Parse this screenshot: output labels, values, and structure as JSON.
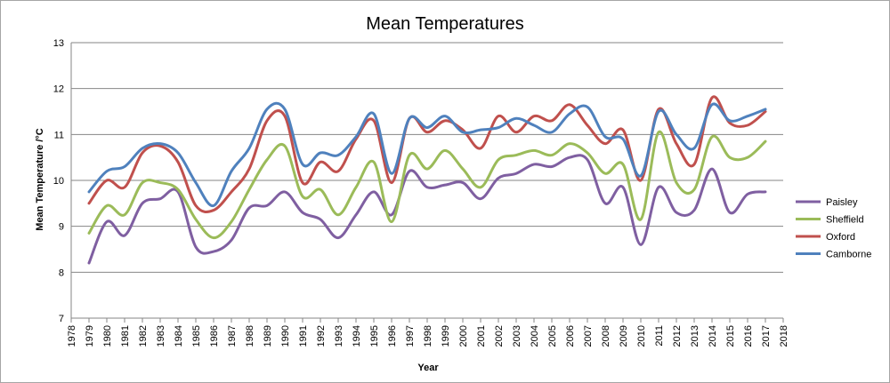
{
  "chart_data": {
    "type": "line",
    "title": "Mean Temperatures",
    "xlabel": "Year",
    "ylabel": "Mean Temperature /°C",
    "xlim": [
      1978,
      2018
    ],
    "ylim": [
      7,
      13
    ],
    "x_ticks": [
      1978,
      1979,
      1980,
      1981,
      1982,
      1983,
      1984,
      1985,
      1986,
      1987,
      1988,
      1989,
      1990,
      1991,
      1992,
      1993,
      1994,
      1995,
      1996,
      1997,
      1998,
      1999,
      2000,
      2001,
      2002,
      2003,
      2004,
      2005,
      2006,
      2007,
      2008,
      2009,
      2010,
      2011,
      2012,
      2013,
      2014,
      2015,
      2016,
      2017,
      2018
    ],
    "y_ticks": [
      7,
      8,
      9,
      10,
      11,
      12,
      13
    ],
    "grid": "horizontal",
    "legend_position": "right",
    "x": [
      1979,
      1980,
      1981,
      1982,
      1983,
      1984,
      1985,
      1986,
      1987,
      1988,
      1989,
      1990,
      1991,
      1992,
      1993,
      1994,
      1995,
      1996,
      1997,
      1998,
      1999,
      2000,
      2001,
      2002,
      2003,
      2004,
      2005,
      2006,
      2007,
      2008,
      2009,
      2010,
      2011,
      2012,
      2013,
      2014,
      2015,
      2016,
      2017
    ],
    "series": [
      {
        "name": "Paisley",
        "color": "#7f5fa1",
        "values": [
          8.2,
          9.1,
          8.8,
          9.5,
          9.6,
          9.75,
          8.55,
          8.45,
          8.7,
          9.4,
          9.45,
          9.75,
          9.3,
          9.15,
          8.75,
          9.25,
          9.75,
          9.25,
          10.2,
          9.85,
          9.9,
          9.95,
          9.6,
          10.05,
          10.15,
          10.35,
          10.3,
          10.5,
          10.45,
          9.5,
          9.85,
          8.6,
          9.85,
          9.3,
          9.35,
          10.25,
          9.3,
          9.7,
          9.75
        ]
      },
      {
        "name": "Sheffield",
        "color": "#9bbb59",
        "values": [
          8.85,
          9.45,
          9.25,
          9.95,
          9.95,
          9.8,
          9.15,
          8.75,
          9.1,
          9.8,
          10.45,
          10.75,
          9.65,
          9.8,
          9.25,
          9.85,
          10.4,
          9.1,
          10.55,
          10.25,
          10.65,
          10.25,
          9.85,
          10.45,
          10.55,
          10.65,
          10.55,
          10.8,
          10.6,
          10.15,
          10.35,
          9.15,
          11.05,
          9.95,
          9.8,
          10.95,
          10.5,
          10.5,
          10.85
        ]
      },
      {
        "name": "Oxford",
        "color": "#c0504d",
        "values": [
          9.5,
          10.0,
          9.85,
          10.6,
          10.75,
          10.4,
          9.45,
          9.35,
          9.75,
          10.25,
          11.3,
          11.4,
          9.95,
          10.4,
          10.2,
          10.9,
          11.3,
          9.95,
          11.35,
          11.05,
          11.3,
          11.1,
          10.7,
          11.4,
          11.05,
          11.4,
          11.3,
          11.65,
          11.2,
          10.8,
          11.1,
          10.0,
          11.55,
          10.8,
          10.35,
          11.8,
          11.25,
          11.2,
          11.5
        ]
      },
      {
        "name": "Camborne",
        "color": "#4f81bd",
        "values": [
          9.75,
          10.2,
          10.3,
          10.7,
          10.8,
          10.6,
          9.95,
          9.45,
          10.2,
          10.7,
          11.55,
          11.55,
          10.35,
          10.6,
          10.55,
          10.95,
          11.45,
          10.15,
          11.35,
          11.15,
          11.4,
          11.05,
          11.1,
          11.15,
          11.35,
          11.2,
          11.05,
          11.45,
          11.6,
          10.95,
          10.9,
          10.1,
          11.5,
          11.0,
          10.7,
          11.65,
          11.3,
          11.4,
          11.55
        ]
      }
    ]
  }
}
